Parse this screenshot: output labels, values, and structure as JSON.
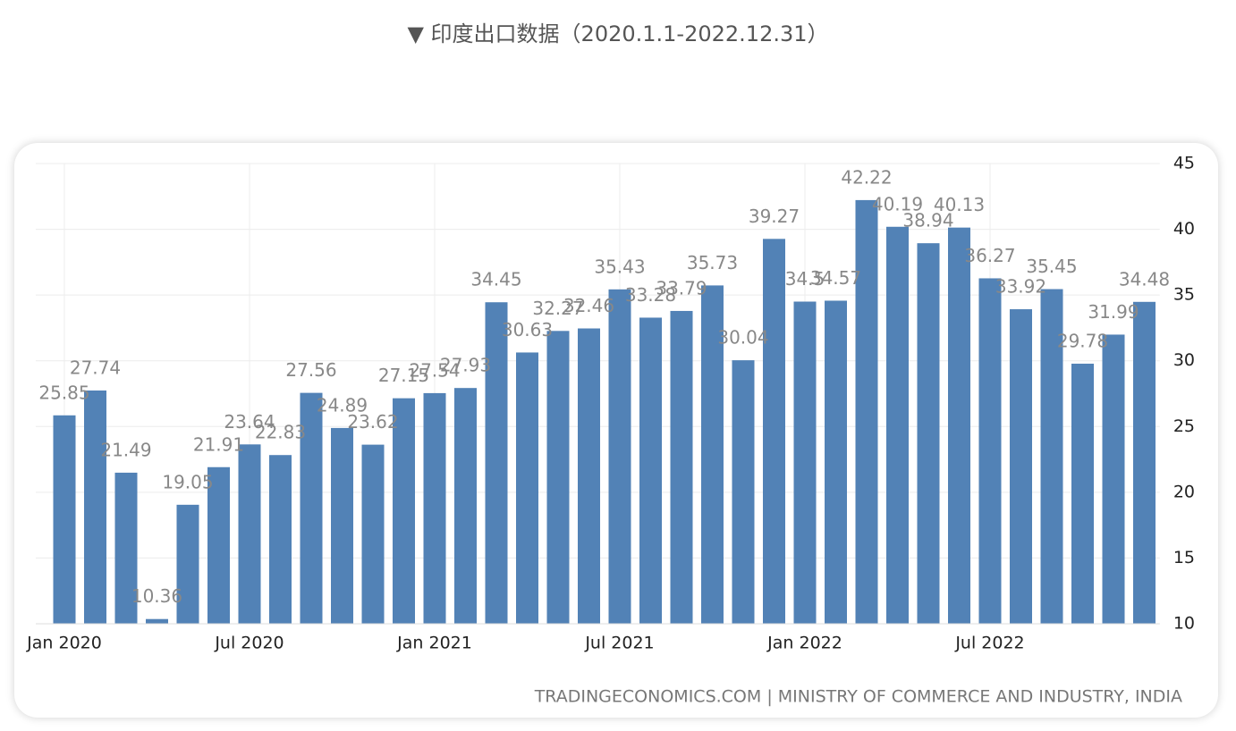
{
  "title": "▼ 印度出口数据（2020.1.1-2022.12.31）",
  "chart_data": {
    "type": "bar",
    "categories": [
      "Jan 2020",
      null,
      null,
      null,
      null,
      null,
      "Jul 2020",
      null,
      null,
      null,
      null,
      null,
      "Jan 2021",
      null,
      null,
      null,
      null,
      null,
      "Jul 2021",
      null,
      null,
      null,
      null,
      null,
      "Jan 2022",
      null,
      null,
      null,
      null,
      null,
      "Jul 2022",
      null,
      null,
      null,
      null,
      null
    ],
    "values": [
      25.85,
      27.74,
      21.49,
      10.36,
      19.05,
      21.91,
      23.64,
      22.83,
      27.56,
      24.89,
      23.62,
      27.15,
      27.54,
      27.93,
      34.45,
      30.63,
      32.27,
      32.46,
      35.43,
      33.28,
      33.79,
      35.73,
      30.04,
      39.27,
      34.5,
      34.57,
      42.22,
      40.19,
      38.94,
      40.13,
      36.27,
      33.92,
      35.45,
      29.78,
      31.99,
      34.48
    ],
    "color": "#5282b6",
    "ylim": [
      10,
      45
    ],
    "yticks": [
      10,
      15,
      20,
      25,
      30,
      35,
      40,
      45
    ],
    "grid": true,
    "source": "TRADINGECONOMICS.COM | MINISTRY OF COMMERCE AND INDUSTRY, INDIA"
  }
}
